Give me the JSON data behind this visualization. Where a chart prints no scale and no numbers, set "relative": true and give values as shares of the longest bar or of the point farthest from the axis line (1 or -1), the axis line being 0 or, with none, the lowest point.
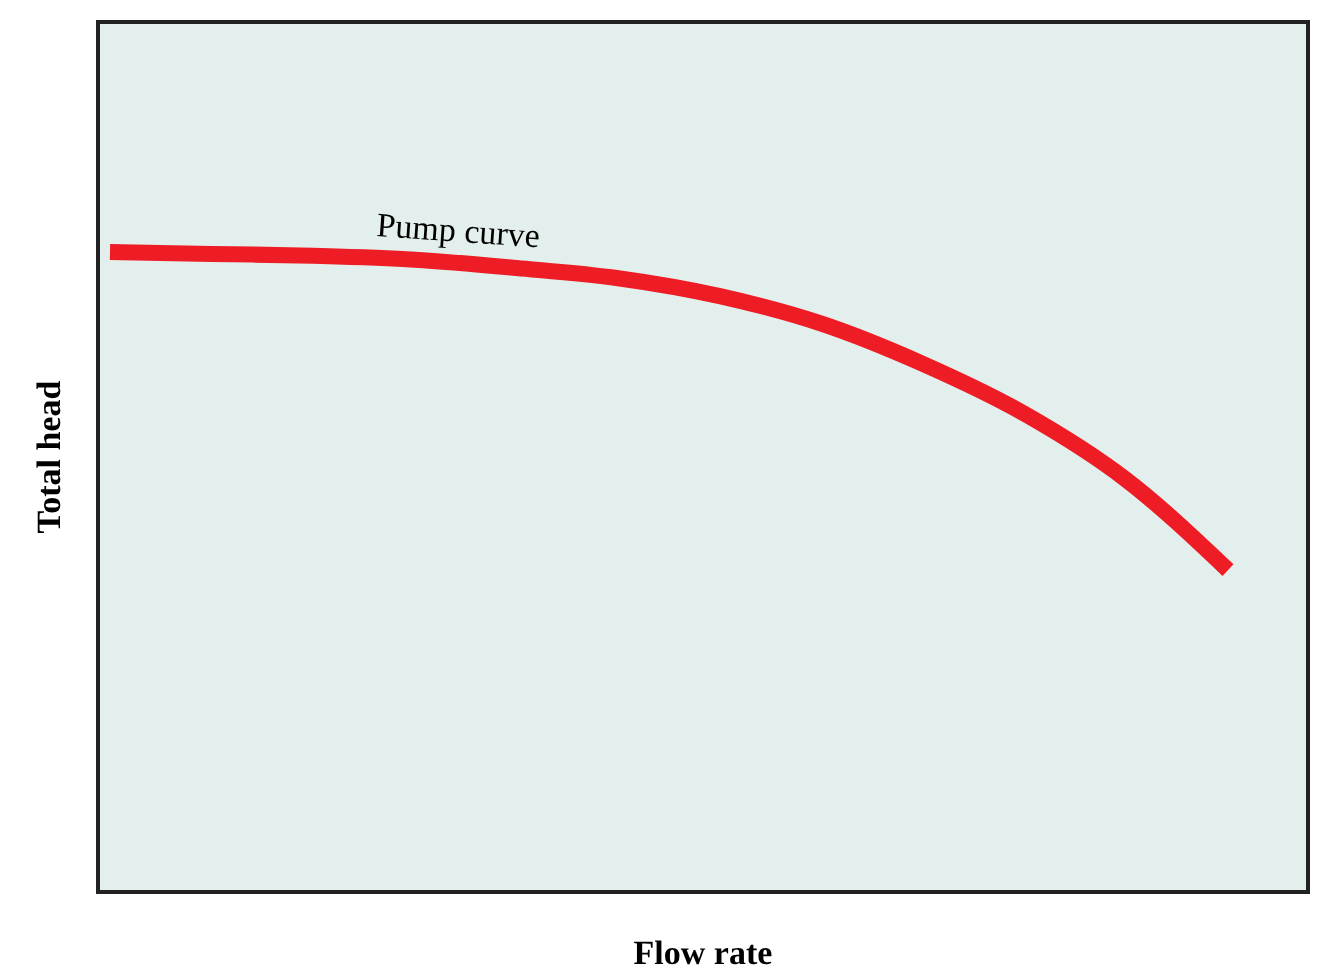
{
  "chart_data": {
    "type": "line",
    "relative": true,
    "xlabel": "Flow rate",
    "ylabel": "Total head",
    "categories": [
      null,
      null,
      null,
      null,
      null,
      null,
      null,
      null,
      null,
      null,
      null,
      null
    ],
    "series": [
      {
        "color": "#ee1c25",
        "values": [
          1,
          0.997,
          0.994,
          0.988,
          0.975,
          0.959,
          0.931,
          0.888,
          0.825,
          0.747,
          0.644,
          0.503
        ]
      }
    ],
    "annotations": [
      "Pump curve"
    ],
    "grid": false,
    "marker": "none",
    "line_style": "solid"
  }
}
